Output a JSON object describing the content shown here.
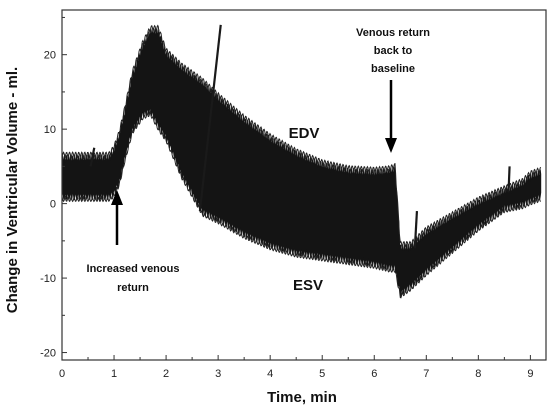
{
  "chart_data": {
    "type": "area",
    "title": "",
    "xlabel": "Time, min",
    "ylabel": "Change in Ventricular Volume - ml.",
    "xlim": [
      0,
      9.3
    ],
    "ylim": [
      -21,
      26
    ],
    "x_ticks": [
      "0",
      "1",
      "2",
      "3",
      "4",
      "5",
      "6",
      "7",
      "8",
      "9"
    ],
    "y_ticks": [
      "20",
      "10",
      "0",
      "-10",
      "-20"
    ],
    "series": [
      {
        "name": "EDV",
        "x": [
          0,
          0.9,
          1.0,
          1.1,
          1.2,
          1.35,
          1.55,
          1.7,
          1.85,
          2.0,
          2.3,
          2.7,
          3.0,
          3.5,
          4.0,
          4.5,
          5.0,
          5.5,
          6.0,
          6.3,
          6.4,
          6.5,
          6.7,
          7.0,
          7.5,
          8.0,
          8.5,
          8.85,
          9.0,
          9.2
        ],
        "y": [
          6,
          6,
          7,
          9,
          12,
          17,
          21,
          23,
          23,
          20,
          18,
          16,
          14,
          11,
          8.5,
          6.5,
          5,
          4.2,
          4,
          4.2,
          4.5,
          -6,
          -6,
          -4,
          -2,
          0,
          1.5,
          2.5,
          3.5,
          4
        ]
      },
      {
        "name": "ESV",
        "x": [
          0,
          0.9,
          1.0,
          1.1,
          1.2,
          1.35,
          1.55,
          1.7,
          1.85,
          2.0,
          2.3,
          2.7,
          3.0,
          3.5,
          4.0,
          4.5,
          5.0,
          5.5,
          6.0,
          6.3,
          6.4,
          6.5,
          6.7,
          7.0,
          7.5,
          8.0,
          8.5,
          8.85,
          9.0,
          9.2
        ],
        "y": [
          1,
          1,
          1.5,
          3,
          6,
          10,
          12,
          12.5,
          10.5,
          9,
          4,
          -1,
          -2,
          -4,
          -5.5,
          -6.5,
          -7,
          -7.5,
          -8,
          -8.5,
          -8.5,
          -12,
          -11,
          -9,
          -6,
          -3,
          -0.5,
          0,
          0.5,
          1
        ]
      }
    ],
    "annotations": [
      {
        "text": "Increased venous return",
        "x": 1.0,
        "y": 0
      },
      {
        "text": "Venous return back to baseline",
        "x": 6.45,
        "y": 6
      },
      {
        "text": "EDV",
        "x": 4.5,
        "y": 9
      },
      {
        "text": "ESV",
        "x": 4.5,
        "y": -11
      }
    ],
    "grid": false
  },
  "labels": {
    "increased_l1": "Increased venous",
    "increased_l2": "return",
    "baseline_l1": "Venous return",
    "baseline_l2": "back to",
    "baseline_l3": "baseline",
    "edv": "EDV",
    "esv": "ESV"
  }
}
